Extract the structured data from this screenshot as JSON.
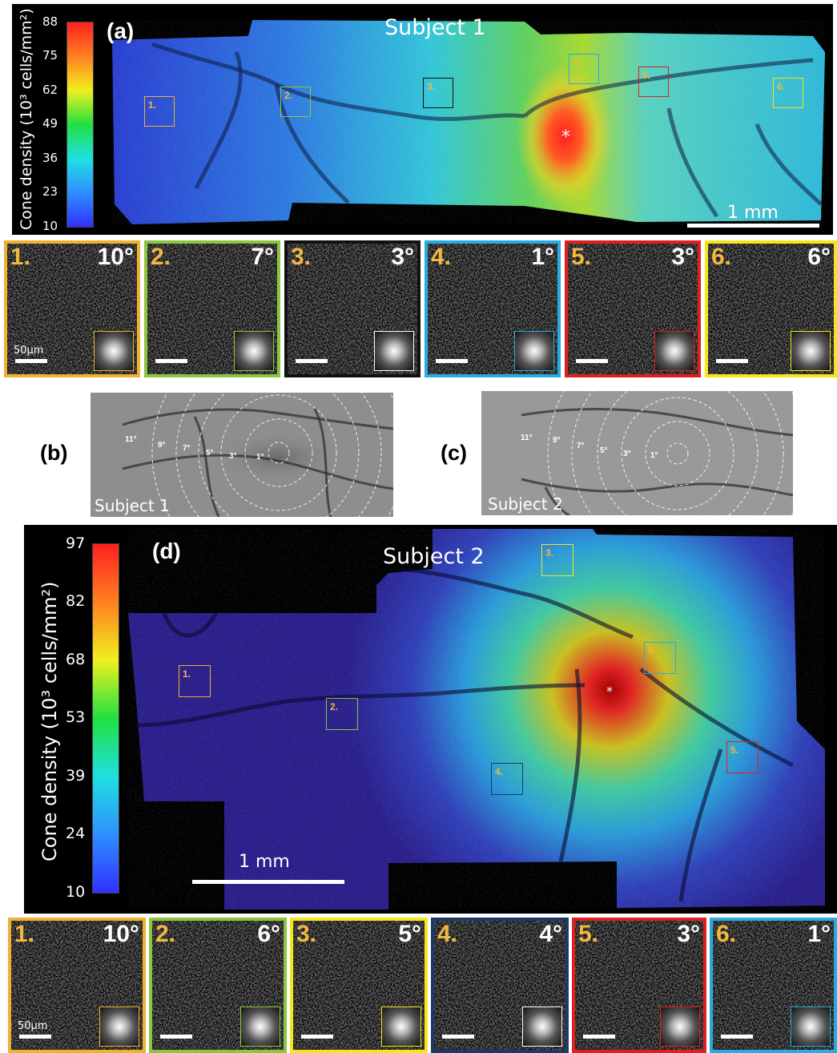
{
  "panel_a": {
    "label": "(a)",
    "subject": "Subject 1",
    "colorbar_title": "Cone density (10³ cells/mm²)",
    "colorbar_ticks": [
      "88",
      "75",
      "62",
      "49",
      "36",
      "23",
      "10"
    ],
    "rois": [
      "1.",
      "2.",
      "3.",
      "4.",
      "5.",
      "6."
    ],
    "scale_label": "1 mm",
    "star": "*"
  },
  "tiles_a": [
    {
      "num": "1.",
      "deg": "10°",
      "color": "#f0b030"
    },
    {
      "num": "2.",
      "deg": "7°",
      "color": "#8cc63f"
    },
    {
      "num": "3.",
      "deg": "3°",
      "color": "#111111"
    },
    {
      "num": "4.",
      "deg": "1°",
      "color": "#29abe2"
    },
    {
      "num": "5.",
      "deg": "3°",
      "color": "#e0201f"
    },
    {
      "num": "6.",
      "deg": "6°",
      "color": "#f5e51a"
    }
  ],
  "tile_scale_label": "50µm",
  "panel_b": {
    "label": "(b)",
    "subject": "Subject 1",
    "eccentricities": [
      "11°",
      "9°",
      "7°",
      "5°",
      "3°",
      "1°"
    ]
  },
  "panel_c": {
    "label": "(c)",
    "subject": "Subject 2",
    "eccentricities": [
      "11°",
      "9°",
      "7°",
      "5°",
      "3°",
      "1°"
    ]
  },
  "panel_d": {
    "label": "(d)",
    "subject": "Subject 2",
    "colorbar_title": "Cone density (10³ cells/mm²)",
    "colorbar_ticks": [
      "97",
      "82",
      "68",
      "53",
      "39",
      "24",
      "10"
    ],
    "rois": [
      "1.",
      "2.",
      "3.",
      "4.",
      "5.",
      "6."
    ],
    "scale_label": "1 mm",
    "star": "*"
  },
  "tiles_d": [
    {
      "num": "1.",
      "deg": "10°",
      "color": "#f0b030"
    },
    {
      "num": "2.",
      "deg": "6°",
      "color": "#8cc63f"
    },
    {
      "num": "3.",
      "deg": "5°",
      "color": "#f5e51a"
    },
    {
      "num": "4.",
      "deg": "4°",
      "color": "#1b3a6b"
    },
    {
      "num": "5.",
      "deg": "3°",
      "color": "#e0201f"
    },
    {
      "num": "6.",
      "deg": "1°",
      "color": "#29abe2"
    }
  ],
  "colors": {
    "roi_label": "#f2b840",
    "jet": [
      "#3030ff",
      "#2f8fff",
      "#20e0e0",
      "#20e040",
      "#f0f020",
      "#ff8020",
      "#ff2020"
    ]
  }
}
